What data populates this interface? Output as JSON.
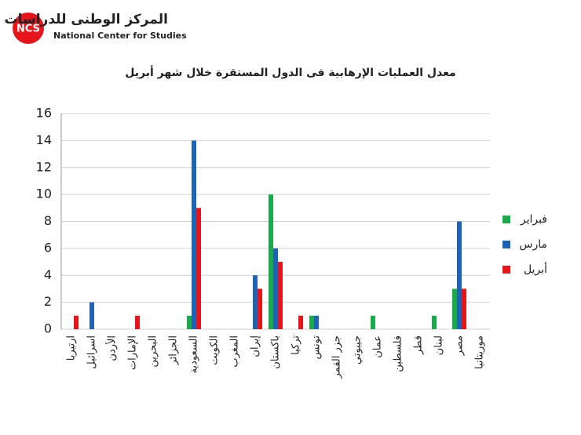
{
  "logo": {
    "abbr": "NCS",
    "name_ar": "المركز الوطنى للدراسات",
    "name_en": "National Center for Studies"
  },
  "chart_data": {
    "type": "bar",
    "title": "معدل العمليات الإرهابية فى الدول المستقرة خلال شهر أبريل",
    "categories": [
      "ارتيريا",
      "اسرائيل",
      "الأردن",
      "الإمارات",
      "البحرين",
      "الجزائر",
      "السعودية",
      "الكويت",
      "المغرب",
      "إيران",
      "باكستان",
      "تركيا",
      "تونس",
      "جزر القمر",
      "جيبوتي",
      "عمان",
      "فلسطين",
      "قطر",
      "لبنان",
      "مصر",
      "موريتانيا"
    ],
    "series": [
      {
        "name": "فبراير",
        "color": "#1aaa4b",
        "values": [
          0,
          0,
          0,
          0,
          0,
          0,
          1,
          0,
          0,
          0,
          10,
          0,
          1,
          0,
          0,
          1,
          0,
          0,
          1,
          3,
          0
        ]
      },
      {
        "name": "مارس",
        "color": "#1f64b4",
        "values": [
          0,
          2,
          0,
          0,
          0,
          0,
          14,
          0,
          0,
          4,
          6,
          0,
          1,
          0,
          0,
          0,
          0,
          0,
          0,
          8,
          0
        ]
      },
      {
        "name": "أبريل",
        "color": "#e8141c",
        "values": [
          1,
          0,
          0,
          1,
          0,
          0,
          9,
          0,
          0,
          3,
          5,
          1,
          0,
          0,
          0,
          0,
          0,
          0,
          0,
          3,
          0
        ]
      }
    ],
    "ylim": [
      0,
      16
    ],
    "yticks": [
      0,
      2,
      4,
      6,
      8,
      10,
      12,
      14,
      16
    ],
    "grid": true,
    "legend": "right"
  }
}
